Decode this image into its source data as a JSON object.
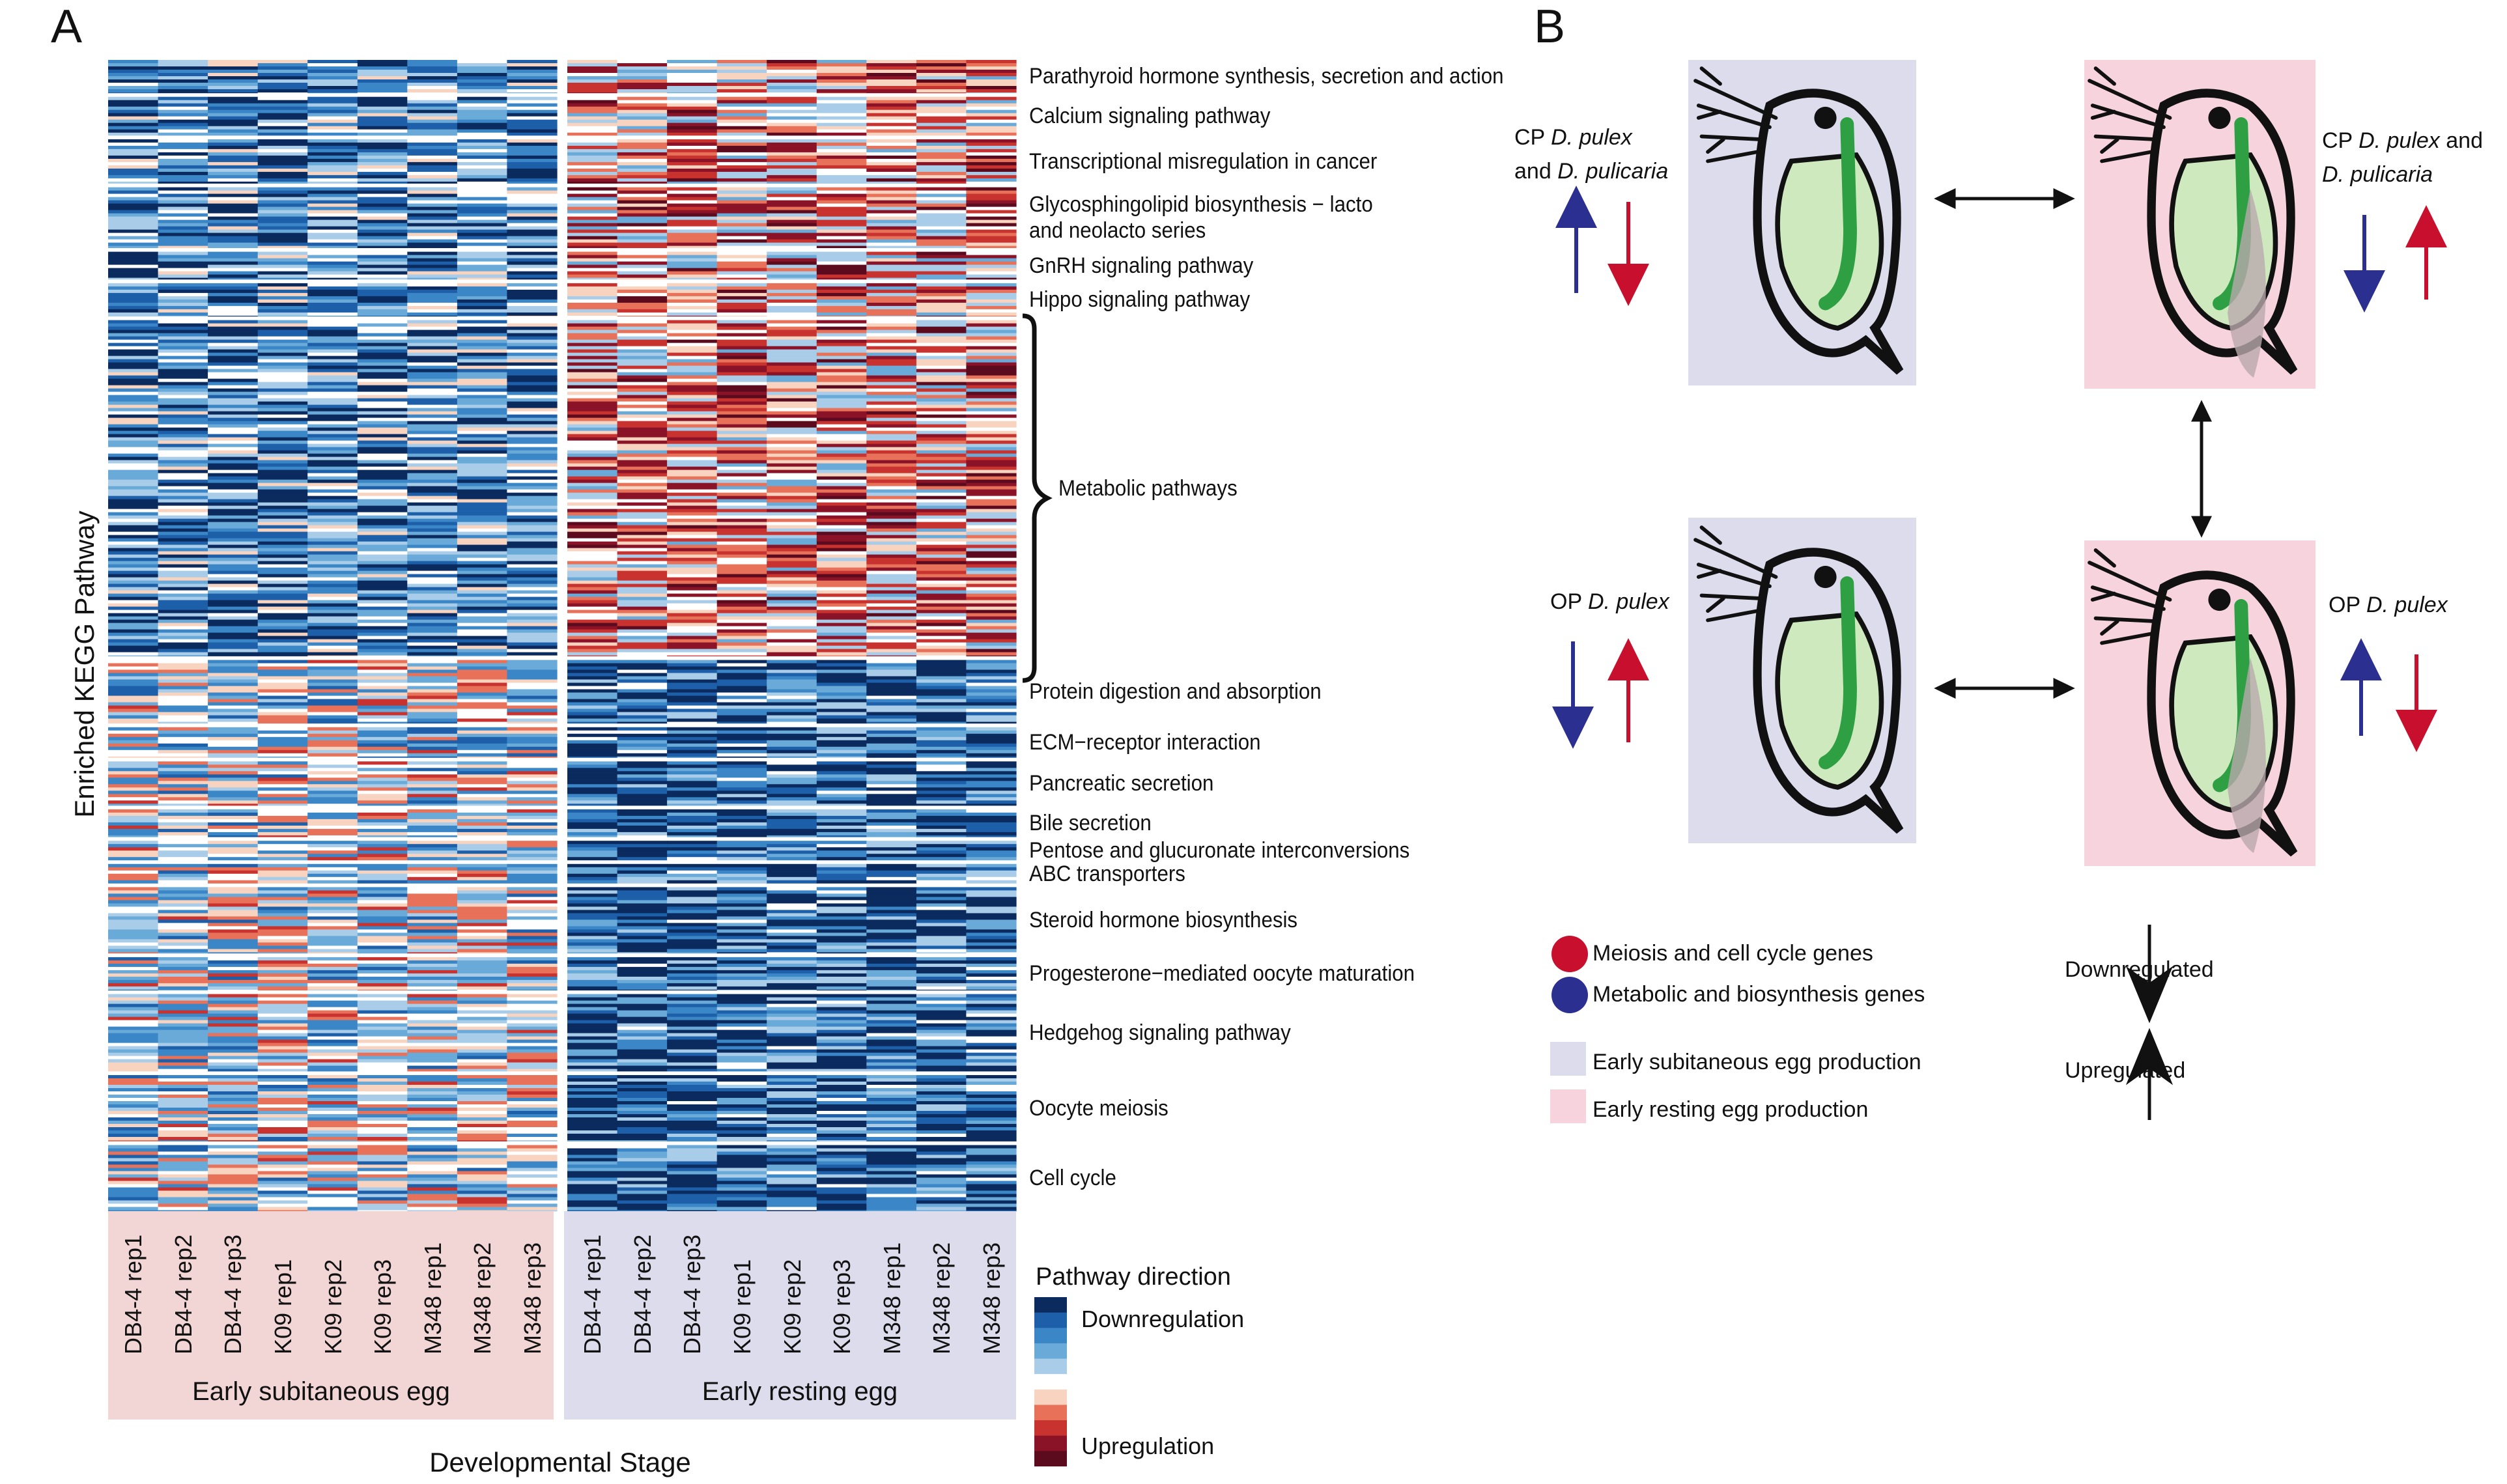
{
  "panels": {
    "a": "A",
    "b": "B"
  },
  "heatmap": {
    "y_axis_label": "Enriched KEGG Pathway",
    "x_axis_label": "Developmental Stage",
    "columns": [
      "DB4-4 rep1",
      "DB4-4 rep2",
      "DB4-4 rep3",
      "K09 rep1",
      "K09 rep2",
      "K09 rep3",
      "M348 rep1",
      "M348 rep2",
      "M348 rep3",
      "DB4-4 rep1",
      "DB4-4 rep2",
      "DB4-4 rep3",
      "K09 rep1",
      "K09 rep2",
      "K09 rep3",
      "M348 rep1",
      "M348 rep2",
      "M348 rep3"
    ],
    "groups": [
      "Early subitaneous egg",
      "Early resting egg"
    ],
    "group_colors": {
      "subitaneous": "#f2d5d5",
      "resting": "#dcdcec"
    },
    "pathways": [
      "Parathyroid hormone synthesis, secretion and action",
      "Calcium signaling pathway",
      "Transcriptional misregulation in cancer",
      "Glycosphingolipid biosynthesis − lacto\nand neolacto series",
      "GnRH signaling pathway",
      "Hippo signaling pathway",
      "Metabolic pathways",
      "Protein digestion and absorption",
      "ECM−receptor interaction",
      "Pancreatic secretion",
      "Bile secretion",
      "Pentose and glucuronate interconversions",
      "ABC transporters",
      "Steroid hormone biosynthesis",
      "Progesterone−mediated oocyte maturation",
      "Hedgehog signaling pathway",
      "Oocyte meiosis",
      "Cell cycle"
    ],
    "legend": {
      "title": "Pathway direction",
      "low_label": "Downregulation",
      "high_label": "Upregulation",
      "colors": [
        "#0b2a5e",
        "#1d5fa8",
        "#3a86c6",
        "#6aaad8",
        "#a9cde8",
        "#ffffff",
        "#f7d3c0",
        "#e8715a",
        "#c8322f",
        "#8a1328",
        "#5c0b1f"
      ]
    }
  },
  "panel_b": {
    "cp_left": {
      "prefix": "CP ",
      "sp1": "D. pulex",
      "joiner": "and ",
      "sp2": "D. pulicaria"
    },
    "cp_right": {
      "prefix": "CP ",
      "sp1": "D. pulex",
      "joiner": " and",
      "sp2": "D. pulicaria"
    },
    "op_left": {
      "prefix": "OP ",
      "sp1": "D. pulex"
    },
    "op_right": {
      "prefix": "OP ",
      "sp1": "D. pulex"
    },
    "key": {
      "meiosis": "Meiosis and cell cycle genes",
      "metabolic": "Metabolic and biosynthesis genes",
      "subitaneous": "Early subitaneous egg production",
      "resting": "Early resting egg production",
      "down": "Downregulated",
      "up": "Upregulated"
    },
    "colors": {
      "red": "#c8102e",
      "blue": "#2b2f8f",
      "lavender": "#dcdcec",
      "pink": "#f6d3dd"
    }
  }
}
